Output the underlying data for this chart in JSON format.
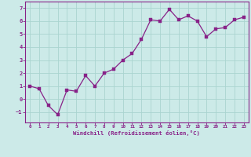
{
  "x": [
    0,
    1,
    2,
    3,
    4,
    5,
    6,
    7,
    8,
    9,
    10,
    11,
    12,
    13,
    14,
    15,
    16,
    17,
    18,
    19,
    20,
    21,
    22,
    23
  ],
  "y": [
    1.0,
    0.8,
    -0.5,
    -1.2,
    0.7,
    0.6,
    1.8,
    1.0,
    2.0,
    2.3,
    3.0,
    3.5,
    4.6,
    6.1,
    6.0,
    6.9,
    6.1,
    6.4,
    6.0,
    4.8,
    5.4,
    5.5,
    6.1,
    6.3
  ],
  "line_color": "#882288",
  "marker_color": "#882288",
  "bg_color": "#cceae8",
  "grid_color": "#aad4d0",
  "tick_label_color": "#882288",
  "xlabel": "Windchill (Refroidissement éolien,°C)",
  "xlabel_color": "#882288",
  "ylim": [
    -1.8,
    7.5
  ],
  "xlim": [
    -0.5,
    23.5
  ],
  "yticks": [
    -1,
    0,
    1,
    2,
    3,
    4,
    5,
    6,
    7
  ],
  "xticks": [
    0,
    1,
    2,
    3,
    4,
    5,
    6,
    7,
    8,
    9,
    10,
    11,
    12,
    13,
    14,
    15,
    16,
    17,
    18,
    19,
    20,
    21,
    22,
    23
  ],
  "title": ""
}
